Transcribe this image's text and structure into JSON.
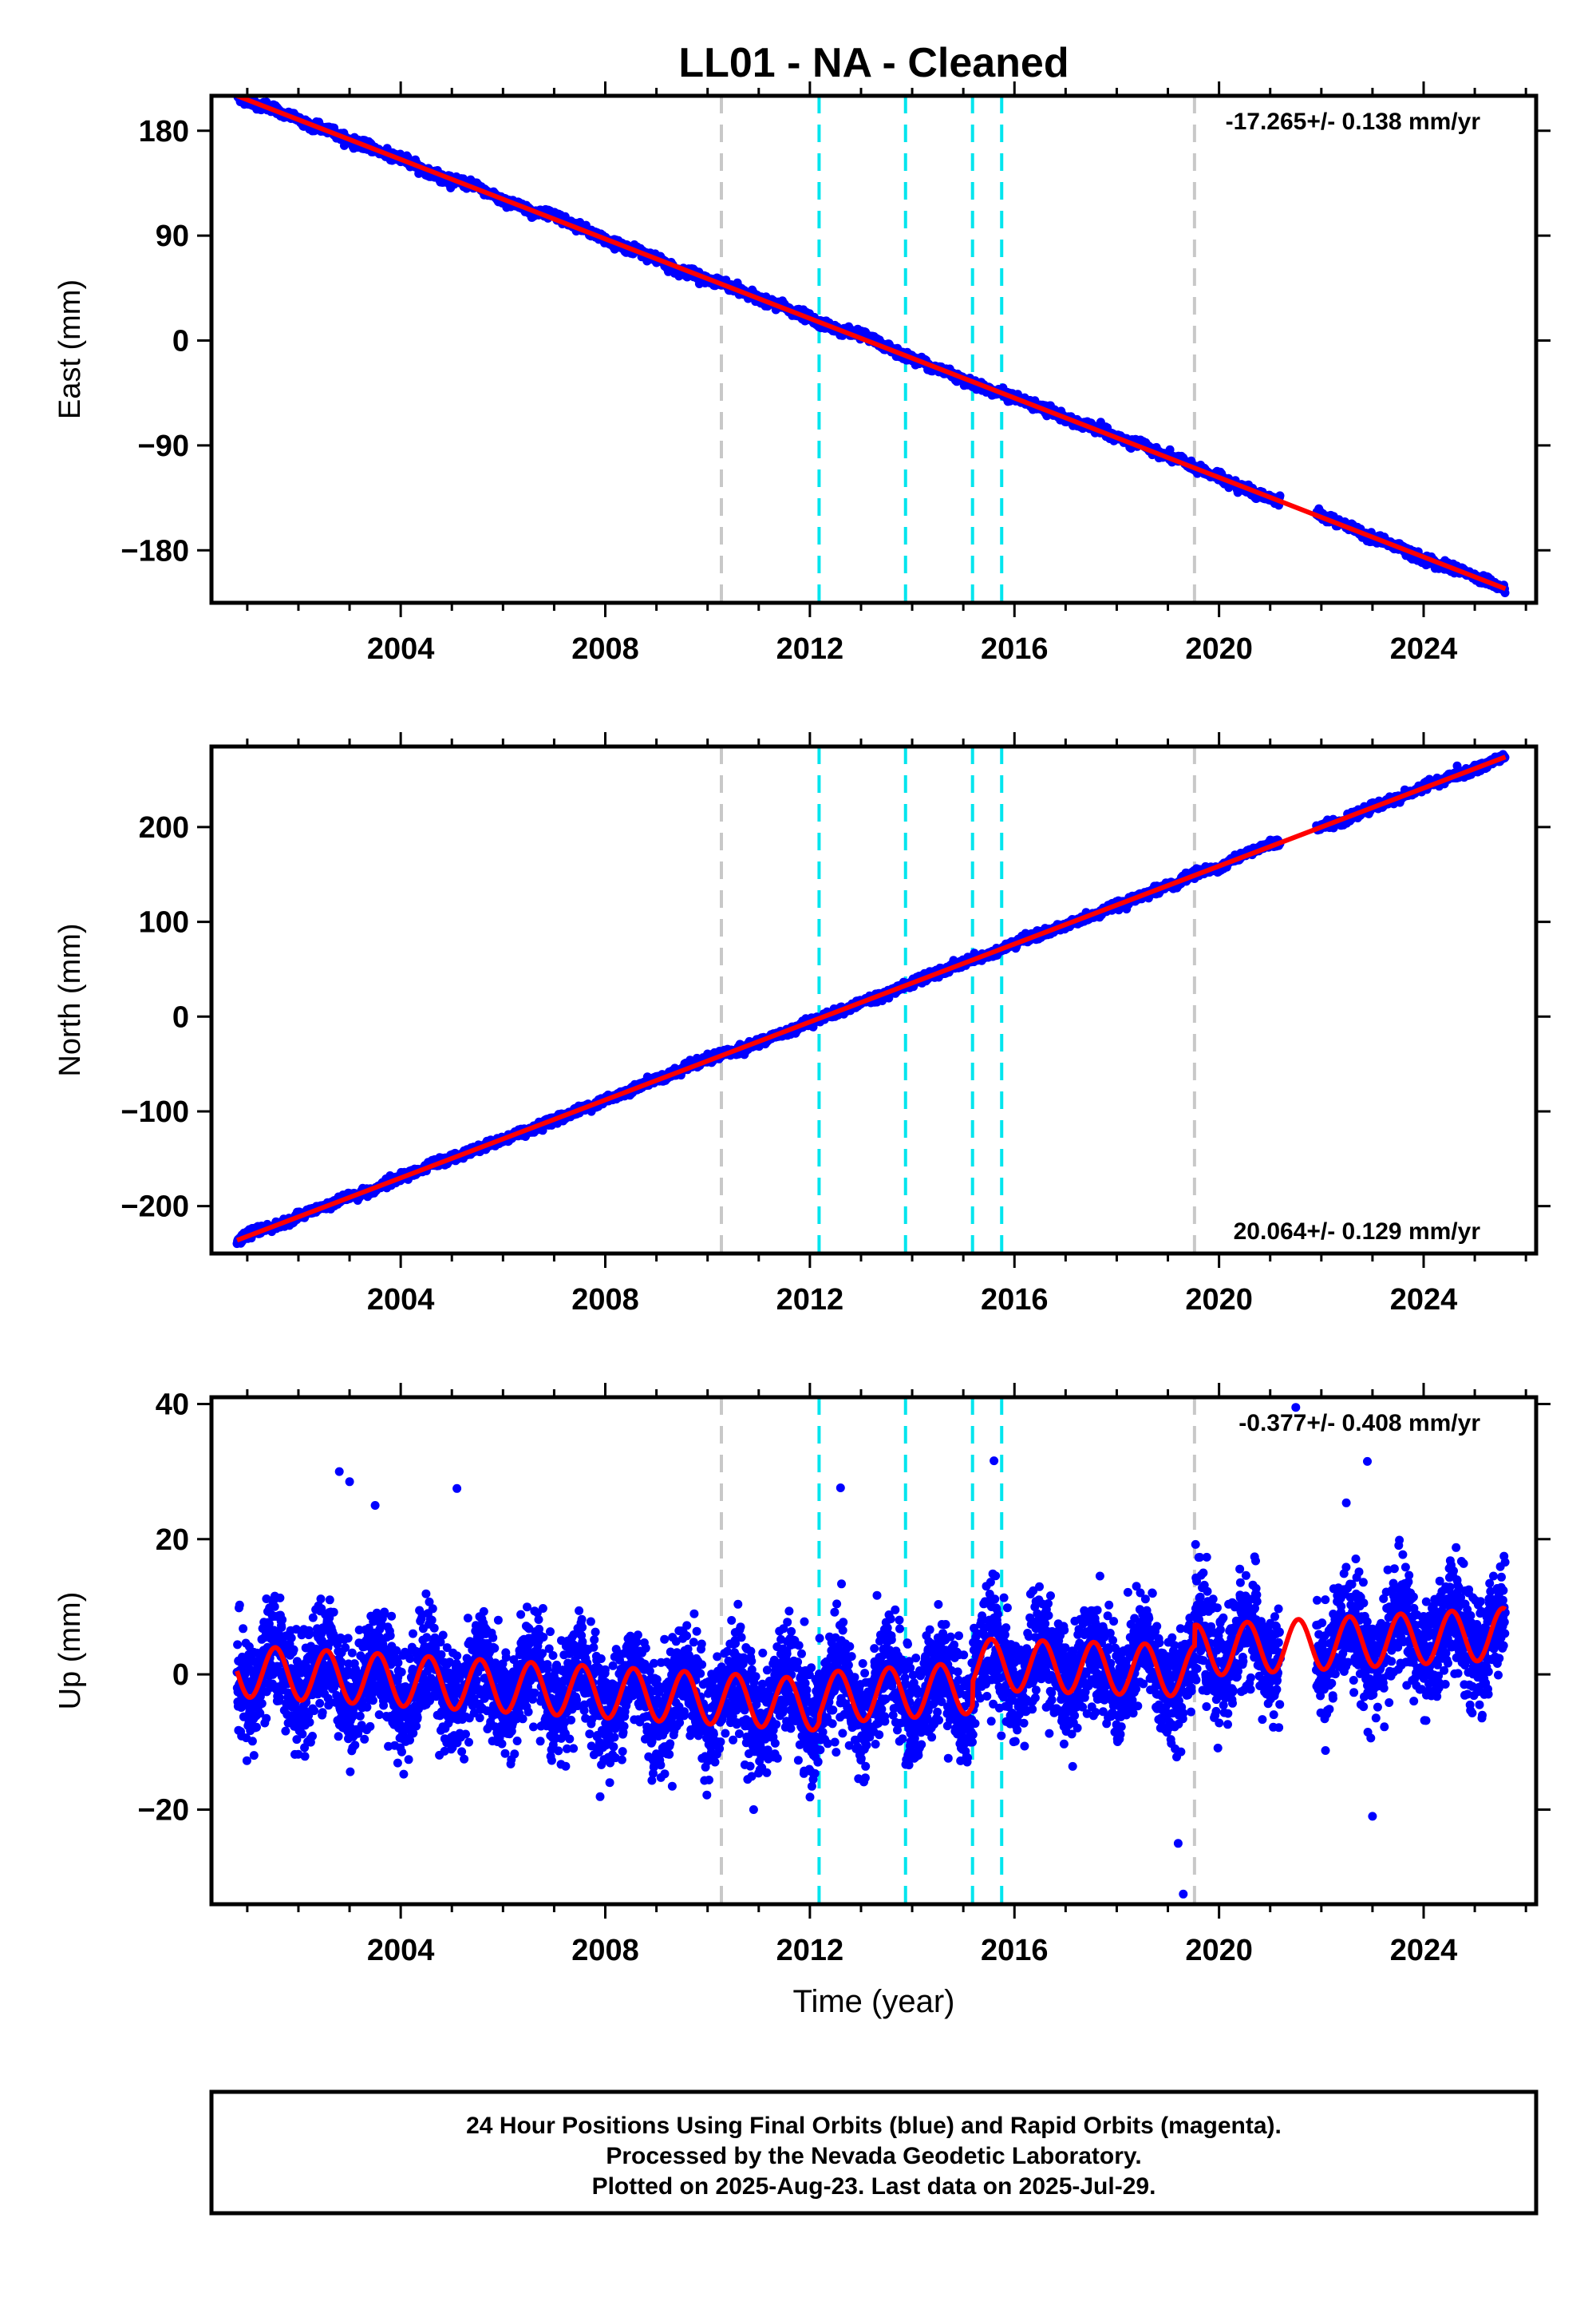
{
  "title": "LL01  - NA - Cleaned",
  "colors": {
    "final_orbits": "#0000ff",
    "model_fit": "#ff0000",
    "antenna_change": "#c8c8c8",
    "offset_event": "#00e5ee",
    "axes": "#000000"
  },
  "chart_data": [
    {
      "type": "scatter",
      "xlim": [
        2000.3,
        2026.2
      ],
      "x_ticks": [
        2004,
        2008,
        2012,
        2016,
        2020,
        2024
      ],
      "x_tick_labels": [
        "2004",
        "2008",
        "2012",
        "2016",
        "2020",
        "2024"
      ],
      "ylabel": "East (mm)",
      "ylim": [
        -225,
        210
      ],
      "y_ticks": [
        180,
        90,
        0,
        -90,
        -180
      ],
      "y_tick_labels": [
        "180",
        "90",
        "0",
        "−90",
        "−180"
      ],
      "rate_label": "-17.265+/- 0.138 mm/yr",
      "rate_position": "top-right",
      "trend": {
        "x": [
          2000.8,
          2025.6
        ],
        "y": [
          210,
          -213
        ]
      },
      "vlines_gray": [
        2010.27,
        2019.52
      ],
      "vlines_cyan": [
        2012.18,
        2013.87,
        2015.18,
        2015.75
      ],
      "series": [
        {
          "name": "Final Orbits",
          "color": "#0000ff",
          "scatter_mm": 1.8
        },
        {
          "name": "Model",
          "color": "#ff0000"
        }
      ]
    },
    {
      "type": "scatter",
      "xlim": [
        2000.3,
        2026.2
      ],
      "x_ticks": [
        2004,
        2008,
        2012,
        2016,
        2020,
        2024
      ],
      "x_tick_labels": [
        "2004",
        "2008",
        "2012",
        "2016",
        "2020",
        "2024"
      ],
      "ylabel": "North (mm)",
      "ylim": [
        -250,
        285
      ],
      "y_ticks": [
        200,
        100,
        0,
        -100,
        -200
      ],
      "y_tick_labels": [
        "200",
        "100",
        "0",
        "−100",
        "−200"
      ],
      "rate_label": "20.064+/- 0.129 mm/yr",
      "rate_position": "bottom-right",
      "trend": {
        "x": [
          2000.8,
          2025.6
        ],
        "y": [
          -236,
          274
        ]
      },
      "vlines_gray": [
        2010.27,
        2019.52
      ],
      "vlines_cyan": [
        2012.18,
        2013.87,
        2015.18,
        2015.75
      ],
      "series": [
        {
          "name": "Final Orbits",
          "color": "#0000ff",
          "scatter_mm": 2.0
        },
        {
          "name": "Model",
          "color": "#ff0000"
        }
      ]
    },
    {
      "type": "scatter",
      "xlim": [
        2000.3,
        2026.2
      ],
      "x_ticks": [
        2004,
        2008,
        2012,
        2016,
        2020,
        2024
      ],
      "x_tick_labels": [
        "2004",
        "2008",
        "2012",
        "2016",
        "2020",
        "2024"
      ],
      "xlabel": "Time (year)",
      "ylabel": "Up (mm)",
      "ylim": [
        -34,
        41
      ],
      "y_ticks": [
        40,
        20,
        0,
        -20
      ],
      "y_tick_labels": [
        "40",
        "20",
        "0",
        "−20"
      ],
      "rate_label": "-0.377+/- 0.408 mm/yr",
      "rate_position": "top-right",
      "model": {
        "baseline_segments": [
          {
            "from": 2000.8,
            "to": 2012.18,
            "y0": 0.5,
            "y1": -4.5
          },
          {
            "from": 2012.18,
            "to": 2015.18,
            "y0": -3.5,
            "y1": -2.0
          },
          {
            "from": 2015.18,
            "to": 2019.52,
            "y0": 1.5,
            "y1": 0.5
          },
          {
            "from": 2019.52,
            "to": 2025.6,
            "y0": 3.5,
            "y1": 6.0
          }
        ],
        "annual_amplitude_mm": 3.8
      },
      "scatter_sigma_mm": 4.0,
      "vlines_gray": [
        2010.27,
        2019.52
      ],
      "vlines_cyan": [
        2012.18,
        2013.87,
        2015.18,
        2015.75
      ],
      "series": [
        {
          "name": "Final Orbits",
          "color": "#0000ff"
        },
        {
          "name": "Model",
          "color": "#ff0000"
        }
      ]
    }
  ],
  "footer": {
    "line1": "24 Hour Positions Using Final Orbits (blue) and Rapid Orbits (magenta).",
    "line2": "Processed by the Nevada Geodetic Laboratory.",
    "line3": "Plotted on 2025-Aug-23. Last data on 2025-Jul-29."
  }
}
